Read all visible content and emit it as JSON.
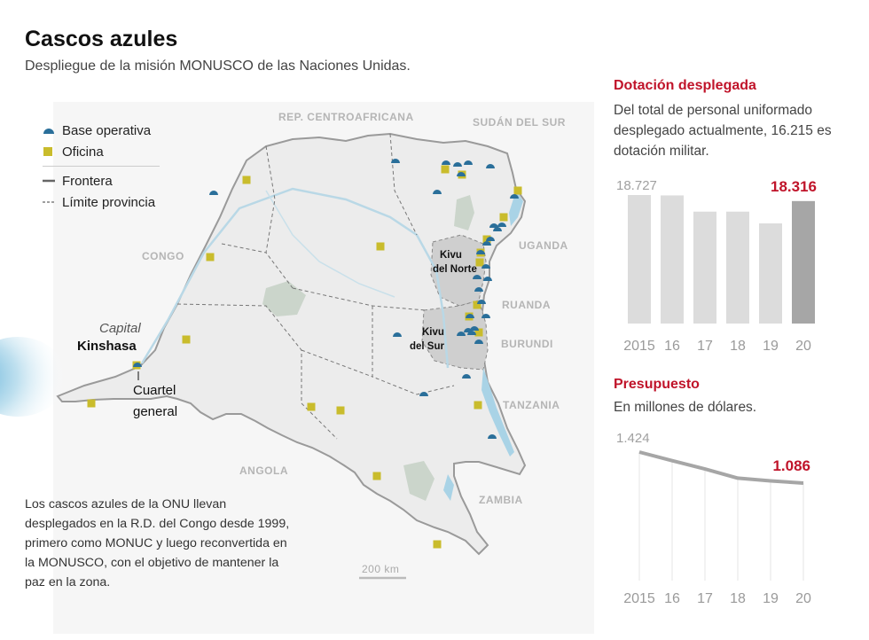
{
  "header": {
    "title": "Cascos azules",
    "subtitle": "Despliegue de la misión MONUSCO de las Naciones Unidas."
  },
  "legend": {
    "base": "Base operativa",
    "office": "Oficina",
    "border": "Frontera",
    "province": "Límite provincia"
  },
  "map_labels": {
    "rca": "REP. CENTROAFRICANA",
    "sudan": "SUDÁN DEL SUR",
    "congo": "CONGO",
    "uganda": "UGANDA",
    "ruanda": "RUANDA",
    "burundi": "BURUNDI",
    "tanzania": "TANZANIA",
    "zambia": "ZAMBIA",
    "angola": "ANGOLA",
    "kivu_norte_1": "Kivu",
    "kivu_norte_2": "del Norte",
    "kivu_sur_1": "Kivu",
    "kivu_sur_2": "del Sur",
    "capital": "Capital",
    "kinshasa": "Kinshasa",
    "cuartel_1": "Cuartel",
    "cuartel_2": "general",
    "scale": "200 km"
  },
  "description": "Los cascos azules de la ONU llevan desplegados en la R.D. del Congo desde 1999, primero como MONUC y luego reconvertida en la MONUSCO, con el objetivo de mantener la paz en la zona.",
  "personnel": {
    "title": "Dotación desplegada",
    "text": "Del total de personal uniformado desplegado actualmente, 16.215 es dotación militar."
  },
  "budget": {
    "title": "Presupuesto",
    "text": "En millones de dólares."
  },
  "colors": {
    "accent": "#c0142a",
    "bar": "#dcdcdc",
    "bar_highlight": "#a6a6a6",
    "base_icon": "#2a6f9a",
    "office_icon": "#c9bc2c",
    "land": "#efefef",
    "water": "#a9d3e6"
  },
  "chart_data": [
    {
      "type": "bar",
      "title": "Dotación desplegada",
      "categories": [
        "2015",
        "16",
        "17",
        "18",
        "19",
        "20"
      ],
      "values": [
        18727,
        18700,
        17600,
        17600,
        16800,
        18316
      ],
      "labels_shown": {
        "first": "18.727",
        "last": "18.316"
      },
      "highlight": "20"
    },
    {
      "type": "line",
      "title": "Presupuesto",
      "ylabel": "En millones de dólares.",
      "categories": [
        "2015",
        "16",
        "17",
        "18",
        "19",
        "20"
      ],
      "values": [
        1424,
        1330,
        1240,
        1140,
        1110,
        1086
      ],
      "labels_shown": {
        "first": "1.424",
        "last": "1.086"
      }
    }
  ]
}
